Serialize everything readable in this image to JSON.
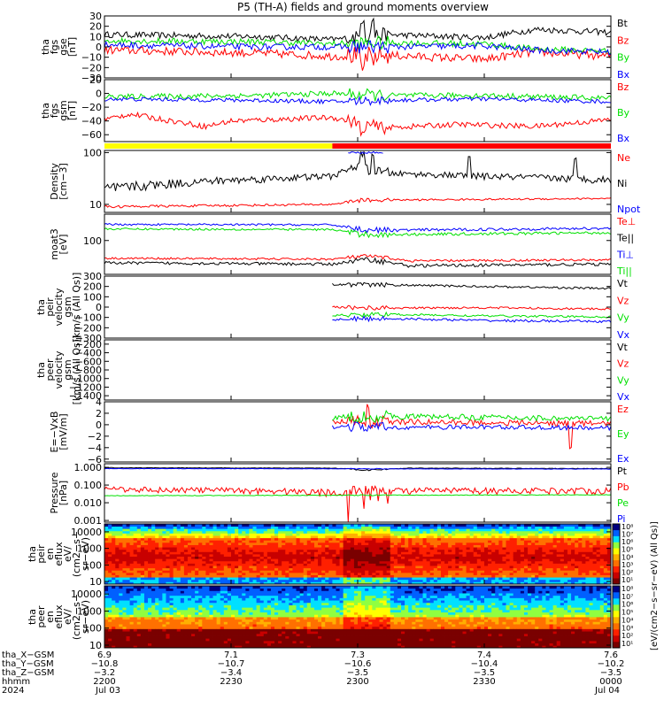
{
  "title": "P5 (TH-A) fields and ground moments overview",
  "colors": {
    "black": "#000000",
    "red": "#ff0000",
    "green": "#00e000",
    "blue": "#0000ff",
    "yellow": "#ffff00"
  },
  "chart_data": [
    {
      "type": "line",
      "panel": "fgs_gse",
      "ylabel": [
        "tha",
        "fgs",
        "gse",
        "[nT]"
      ],
      "ylim": [
        -30,
        30
      ],
      "yticks": [
        30,
        20,
        10,
        0,
        -10,
        -20,
        -30
      ],
      "ytick_labels": [
        "30",
        "20",
        "10",
        "0",
        "−10",
        "−20",
        "−30"
      ],
      "series": [
        {
          "name": "Bt",
          "color": "#000000",
          "levels": [
            [
              0,
              12
            ],
            [
              0.3,
              10
            ],
            [
              0.45,
              7
            ],
            [
              0.55,
              12
            ],
            [
              0.75,
              9
            ],
            [
              0.85,
              17
            ],
            [
              1,
              14
            ]
          ],
          "noise": 3,
          "spikes": [
            [
              0.51,
              28
            ],
            [
              0.53,
              27
            ]
          ]
        },
        {
          "name": "Bz",
          "color": "#ff0000",
          "levels": [
            [
              0,
              -3
            ],
            [
              0.3,
              -6
            ],
            [
              0.45,
              -9
            ],
            [
              0.55,
              -8
            ],
            [
              0.75,
              -12
            ],
            [
              0.85,
              -5
            ],
            [
              1,
              -9
            ]
          ],
          "noise": 4,
          "spikes": [
            [
              0.51,
              -22
            ],
            [
              0.53,
              -18
            ]
          ]
        },
        {
          "name": "By",
          "color": "#00e000",
          "levels": [
            [
              0,
              6
            ],
            [
              0.3,
              5
            ],
            [
              0.45,
              3
            ],
            [
              0.55,
              4
            ],
            [
              0.75,
              3
            ],
            [
              0.85,
              -2
            ],
            [
              1,
              -4
            ]
          ],
          "noise": 3
        },
        {
          "name": "Bx",
          "color": "#0000ff",
          "levels": [
            [
              0,
              2
            ],
            [
              0.3,
              0
            ],
            [
              0.45,
              0
            ],
            [
              0.55,
              0
            ],
            [
              0.75,
              1
            ],
            [
              0.85,
              -3
            ],
            [
              1,
              -5
            ]
          ],
          "noise": 3
        }
      ]
    },
    {
      "type": "line",
      "panel": "fgs_gsm",
      "ylabel": [
        "tha",
        "fgs",
        "gsm",
        "[nT]"
      ],
      "ylim": [
        -70,
        20
      ],
      "yticks": [
        20,
        0,
        -20,
        -40,
        -60
      ],
      "ytick_labels": [
        "20",
        "0",
        "−20",
        "−40",
        "−60"
      ],
      "series": [
        {
          "name": "Bz",
          "color": "#ff0000",
          "levels": [
            [
              0,
              -38
            ],
            [
              0.05,
              -30
            ],
            [
              0.2,
              -48
            ],
            [
              0.25,
              -40
            ],
            [
              0.45,
              -35
            ],
            [
              0.55,
              -50
            ],
            [
              0.7,
              -45
            ],
            [
              0.85,
              -48
            ],
            [
              1,
              -38
            ]
          ],
          "noise": 4,
          "spikes": [
            [
              0.51,
              -62
            ]
          ]
        },
        {
          "name": "By",
          "color": "#00e000",
          "levels": [
            [
              0,
              -5
            ],
            [
              0.3,
              -3
            ],
            [
              0.45,
              0
            ],
            [
              0.55,
              -3
            ],
            [
              0.75,
              -3
            ],
            [
              1,
              -7
            ]
          ],
          "noise": 4
        },
        {
          "name": "Bx",
          "color": "#0000ff",
          "levels": [
            [
              0,
              -8
            ],
            [
              0.3,
              -10
            ],
            [
              0.45,
              -12
            ],
            [
              0.55,
              -10
            ],
            [
              0.75,
              -8
            ],
            [
              1,
              -12
            ]
          ],
          "noise": 3
        }
      ]
    },
    {
      "type": "bar",
      "panel": "mode_bar",
      "segments": [
        {
          "from": 0,
          "to": 0.45,
          "color": "#ffff00"
        },
        {
          "from": 0.45,
          "to": 1,
          "color": "#ff0000"
        }
      ]
    },
    {
      "type": "line",
      "panel": "density",
      "ylabel": [
        "Density",
        "[cm−3]"
      ],
      "scale": "log",
      "ylim": [
        7,
        110
      ],
      "yticks": [
        100,
        10
      ],
      "ytick_labels": [
        "100",
        "10"
      ],
      "series": [
        {
          "name": "Ne",
          "color": "#ff0000",
          "levels": [
            [
              0,
              9
            ],
            [
              0.45,
              10
            ],
            [
              0.5,
              12
            ],
            [
              1,
              13
            ]
          ],
          "noise": 0.5
        },
        {
          "name": "Ni",
          "color": "#000000",
          "levels": [
            [
              0,
              20
            ],
            [
              0.2,
              28
            ],
            [
              0.45,
              35
            ],
            [
              0.5,
              55
            ],
            [
              0.55,
              40
            ],
            [
              0.75,
              35
            ],
            [
              1,
              30
            ]
          ],
          "noise": 5,
          "spikes": [
            [
              0.51,
              95
            ],
            [
              0.53,
              90
            ],
            [
              0.72,
              80
            ],
            [
              0.93,
              75
            ]
          ]
        },
        {
          "name": "Npot",
          "color": "#0000ff",
          "levels": [
            [
              0.48,
              100
            ],
            [
              0.55,
              100
            ]
          ],
          "noise": 2
        }
      ]
    },
    {
      "type": "line",
      "panel": "temperature",
      "ylabel": [
        "moat3",
        "[eV]"
      ],
      "scale": "log",
      "ylim": [
        10,
        600
      ],
      "yticks": [
        100
      ],
      "ytick_labels": [
        "100"
      ],
      "series": [
        {
          "name": "Te⊥",
          "color": "#ff0000",
          "levels": [
            [
              0,
              30
            ],
            [
              0.45,
              28
            ],
            [
              0.52,
              35
            ],
            [
              0.6,
              25
            ],
            [
              1,
              27
            ]
          ],
          "noise": 2
        },
        {
          "name": "Te||",
          "color": "#000000",
          "levels": [
            [
              0,
              22
            ],
            [
              0.45,
              20
            ],
            [
              0.52,
              28
            ],
            [
              0.6,
              18
            ],
            [
              1,
              20
            ]
          ],
          "noise": 2
        },
        {
          "name": "Ti⊥",
          "color": "#0000ff",
          "levels": [
            [
              0,
              300
            ],
            [
              0.45,
              290
            ],
            [
              0.5,
              220
            ],
            [
              0.55,
              200
            ],
            [
              1,
              230
            ]
          ],
          "noise": 20
        },
        {
          "name": "Ti||",
          "color": "#00e000",
          "levels": [
            [
              0,
              220
            ],
            [
              0.45,
              210
            ],
            [
              0.5,
              160
            ],
            [
              0.55,
              150
            ],
            [
              1,
              170
            ]
          ],
          "noise": 15
        }
      ]
    },
    {
      "type": "line",
      "panel": "peir_velocity",
      "ylabel": [
        "tha",
        "peir",
        "velocity",
        "gsm",
        "[km/s (All Qs)]"
      ],
      "ylim": [
        -300,
        300
      ],
      "yticks": [
        300,
        200,
        100,
        0,
        -100,
        -200,
        -300
      ],
      "ytick_labels": [
        "300",
        "200",
        "100",
        "0",
        "−100",
        "−200",
        "−300"
      ],
      "series": [
        {
          "name": "Vt",
          "color": "#000000",
          "levels": [
            [
              0.45,
              220
            ],
            [
              0.55,
              215
            ],
            [
              0.75,
              200
            ],
            [
              1,
              180
            ]
          ],
          "noise": 10
        },
        {
          "name": "Vz",
          "color": "#ff0000",
          "levels": [
            [
              0.45,
              0
            ],
            [
              0.55,
              -10
            ],
            [
              0.75,
              -5
            ],
            [
              1,
              -20
            ]
          ],
          "noise": 10
        },
        {
          "name": "Vy",
          "color": "#00e000",
          "levels": [
            [
              0.45,
              -80
            ],
            [
              0.55,
              -70
            ],
            [
              0.75,
              -85
            ],
            [
              1,
              -95
            ]
          ],
          "noise": 10
        },
        {
          "name": "Vx",
          "color": "#0000ff",
          "levels": [
            [
              0.45,
              -120
            ],
            [
              0.55,
              -110
            ],
            [
              0.75,
              -130
            ],
            [
              1,
              -140
            ]
          ],
          "noise": 12
        }
      ]
    },
    {
      "type": "line",
      "panel": "peer_velocity",
      "ylabel": [
        "tha",
        "peer",
        "velocity",
        "gsm",
        "[km/s (All Qs)]"
      ],
      "ylim": [
        -1500,
        -100
      ],
      "yticks": [
        -200,
        -400,
        -600,
        -800,
        -1000,
        -1200,
        -1400
      ],
      "ytick_labels": [
        "−200",
        "−400",
        "−600",
        "−800",
        "−1000",
        "−1200",
        "−1400"
      ],
      "series": [
        {
          "name": "Vt",
          "color": "#000000",
          "levels": []
        },
        {
          "name": "Vz",
          "color": "#ff0000",
          "levels": []
        },
        {
          "name": "Vy",
          "color": "#00e000",
          "levels": []
        },
        {
          "name": "Vx",
          "color": "#0000ff",
          "levels": []
        }
      ]
    },
    {
      "type": "line",
      "panel": "efield",
      "ylabel": [
        "E=−VxB",
        "[mV/m]"
      ],
      "ylim": [
        -6.5,
        4
      ],
      "yticks": [
        4,
        2,
        0,
        -2,
        -4,
        -6
      ],
      "ytick_labels": [
        "4",
        "2",
        "0",
        "−2",
        "−4",
        "−6"
      ],
      "series": [
        {
          "name": "Ez",
          "color": "#ff0000",
          "levels": [
            [
              0.45,
              0.5
            ],
            [
              0.55,
              0.5
            ],
            [
              1,
              0.2
            ]
          ],
          "noise": 0.5,
          "spikes": [
            [
              0.52,
              3
            ],
            [
              0.92,
              -4
            ]
          ]
        },
        {
          "name": "Ey",
          "color": "#00e000",
          "levels": [
            [
              0.45,
              1.2
            ],
            [
              0.55,
              1.5
            ],
            [
              0.75,
              1.3
            ],
            [
              1,
              1
            ]
          ],
          "noise": 0.5
        },
        {
          "name": "Ex",
          "color": "#0000ff",
          "levels": [
            [
              0.45,
              -0.3
            ],
            [
              0.55,
              -0.5
            ],
            [
              0.75,
              -0.4
            ],
            [
              1,
              -0.6
            ]
          ],
          "noise": 0.4
        }
      ]
    },
    {
      "type": "line",
      "panel": "pressure",
      "ylabel": [
        "Pressure",
        "[nPa]"
      ],
      "scale": "log",
      "ylim": [
        0.0008,
        1.6
      ],
      "yticks": [
        1.0,
        0.1,
        0.01,
        0.001
      ],
      "ytick_labels": [
        "1.000",
        "0.100",
        "0.010",
        "0.001"
      ],
      "series": [
        {
          "name": "Pt",
          "color": "#000000",
          "levels": [
            [
              0,
              0.95
            ],
            [
              0.45,
              0.9
            ],
            [
              0.52,
              0.7
            ],
            [
              0.6,
              0.9
            ],
            [
              1,
              0.85
            ]
          ],
          "noise": 0.03
        },
        {
          "name": "Pb",
          "color": "#ff0000",
          "levels": [
            [
              0,
              0.06
            ],
            [
              0.3,
              0.05
            ],
            [
              0.45,
              0.04
            ],
            [
              0.55,
              0.05
            ],
            [
              1,
              0.05
            ]
          ],
          "noise": 0.02
        },
        {
          "name": "Pe",
          "color": "#00e000",
          "levels": [
            [
              0,
              0.025
            ],
            [
              1,
              0.028
            ]
          ],
          "noise": 0.001
        },
        {
          "name": "Pi",
          "color": "#0000ff",
          "levels": [
            [
              0,
              0.85
            ],
            [
              1,
              0.8
            ]
          ],
          "noise": 0.02
        }
      ]
    },
    {
      "type": "heatmap",
      "panel": "peir_eflux",
      "ylabel": [
        "tha",
        "peir",
        "en",
        "eflux",
        "eV/",
        "(cm2−s−",
        "sr−eV)"
      ],
      "scale": "log",
      "ylim": [
        7,
        30000
      ],
      "yticks": [
        10000,
        1000,
        100,
        10
      ],
      "ytick_labels": [
        "10000",
        "1000",
        "100",
        "10"
      ],
      "colorbar_label": "[eV/(cm2−s−sr−eV) (All Qs)]",
      "colorbar_ticks": [
        "10⁸",
        "10⁷",
        "10⁶",
        "10⁵",
        "10⁴",
        "10³",
        "10²",
        "10¹"
      ]
    },
    {
      "type": "heatmap",
      "panel": "peer_eflux",
      "ylabel": [
        "tha",
        "peer",
        "en",
        "eflux",
        "eV/",
        "(cm2−s−",
        "sr−eV)"
      ],
      "scale": "log",
      "ylim": [
        7,
        30000
      ],
      "yticks": [
        10000,
        1000,
        100,
        10
      ],
      "ytick_labels": [
        "10000",
        "1000",
        "100",
        "10"
      ],
      "colorbar_label": "[eV/(cm2−s−sr−eV) (All Qs)]",
      "colorbar_ticks": [
        "10⁸",
        "10⁷",
        "10⁶",
        "10⁵",
        "10⁴",
        "10³",
        "10²",
        "10¹"
      ]
    }
  ],
  "xaxis": {
    "row_labels": [
      "tha_X−GSM",
      "tha_Y−GSM",
      "tha_Z−GSM",
      "hhmm",
      "2024"
    ],
    "ticks": [
      {
        "rows": [
          "6.9",
          "−10.8",
          "−3.2",
          "2200",
          "Jul 03"
        ]
      },
      {
        "rows": [
          "7.1",
          "−10.7",
          "−3.4",
          "2230",
          ""
        ]
      },
      {
        "rows": [
          "7.3",
          "−10.6",
          "−3.5",
          "2300",
          ""
        ]
      },
      {
        "rows": [
          "7.4",
          "−10.4",
          "−3.5",
          "2330",
          ""
        ]
      },
      {
        "rows": [
          "7.6",
          "−10.2",
          "−3.5",
          "0000",
          "Jul 04"
        ]
      }
    ]
  }
}
